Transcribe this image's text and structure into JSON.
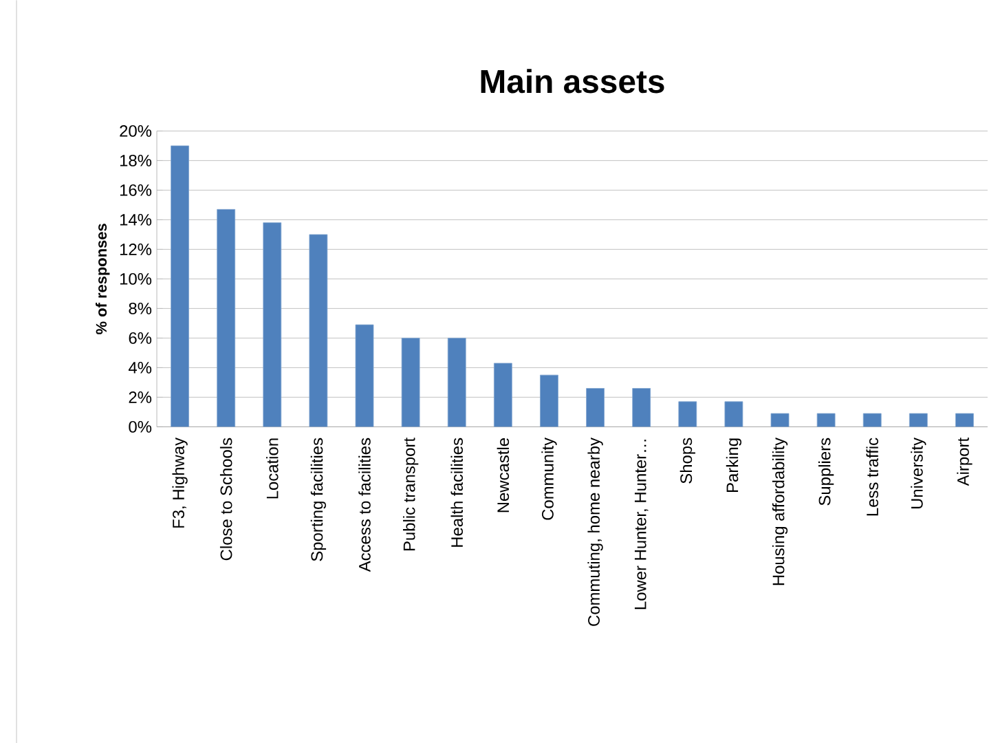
{
  "chart_data": {
    "type": "bar",
    "title": "Main assets",
    "ylabel": "% of responses",
    "categories": [
      "F3, Highway",
      "Close to Schools",
      "Location",
      "Sporting facilities",
      "Access to facilities",
      "Public transport",
      "Health facilities",
      "Newcastle",
      "Community",
      "Commuting, home nearby",
      "Lower Hunter, Hunter…",
      "Shops",
      "Parking",
      "Housing affordability",
      "Suppliers",
      "Less traffic",
      "University",
      "Airport"
    ],
    "values": [
      19,
      14.7,
      13.8,
      13,
      6.9,
      6,
      6,
      4.3,
      3.5,
      2.6,
      2.6,
      1.7,
      1.7,
      0.9,
      0.9,
      0.9,
      0.9,
      0.9
    ],
    "color": "#4f81bd",
    "ylim": [
      0,
      20
    ],
    "yticks": [
      {
        "value": 0,
        "label": "0%"
      },
      {
        "value": 2,
        "label": "2%"
      },
      {
        "value": 4,
        "label": "4%"
      },
      {
        "value": 6,
        "label": "6%"
      },
      {
        "value": 8,
        "label": "8%"
      },
      {
        "value": 10,
        "label": "10%"
      },
      {
        "value": 12,
        "label": "12%"
      },
      {
        "value": 14,
        "label": "14%"
      },
      {
        "value": 16,
        "label": "16%"
      },
      {
        "value": 18,
        "label": "18%"
      },
      {
        "value": 20,
        "label": "20%"
      }
    ],
    "grid": "y"
  }
}
